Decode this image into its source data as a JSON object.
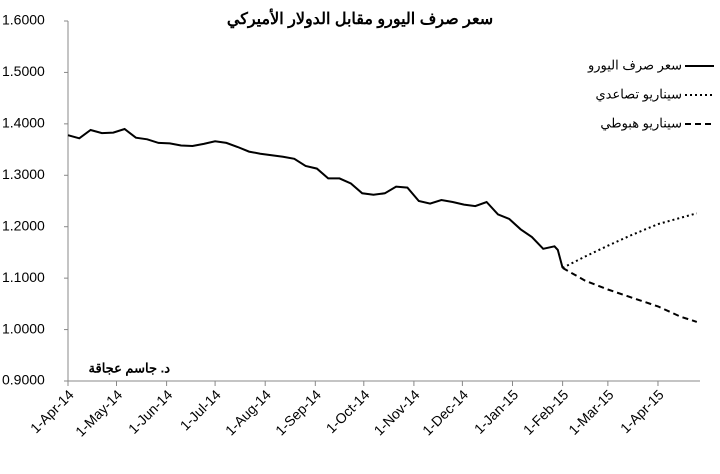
{
  "chart_data": {
    "type": "line",
    "title": "سعر صرف اليورو مقابل الدولار الأميركي",
    "annotation": "د. جاسم عجاقة",
    "xlim": [
      "2014-04-01",
      "2015-04-27"
    ],
    "xticks": [
      {
        "value": "2014-04-01",
        "label": "1-Apr-14"
      },
      {
        "value": "2014-05-01",
        "label": "1-May-14"
      },
      {
        "value": "2014-06-01",
        "label": "1-Jun-14"
      },
      {
        "value": "2014-07-01",
        "label": "1-Jul-14"
      },
      {
        "value": "2014-08-01",
        "label": "1-Aug-14"
      },
      {
        "value": "2014-09-01",
        "label": "1-Sep-14"
      },
      {
        "value": "2014-10-01",
        "label": "1-Oct-14"
      },
      {
        "value": "2014-11-01",
        "label": "1-Nov-14"
      },
      {
        "value": "2014-12-01",
        "label": "1-Dec-14"
      },
      {
        "value": "2015-01-01",
        "label": "1-Jan-15"
      },
      {
        "value": "2015-02-01",
        "label": "1-Feb-15"
      },
      {
        "value": "2015-03-01",
        "label": "1-Mar-15"
      },
      {
        "value": "2015-04-01",
        "label": "1-Apr-15"
      }
    ],
    "ylim": [
      0.9,
      1.6
    ],
    "yticks": [
      {
        "value": 0.9,
        "label": "0.9000"
      },
      {
        "value": 1.0,
        "label": "1.0000"
      },
      {
        "value": 1.1,
        "label": "1.1000"
      },
      {
        "value": 1.2,
        "label": "1.2000"
      },
      {
        "value": 1.3,
        "label": "1.3000"
      },
      {
        "value": 1.4,
        "label": "1.4000"
      },
      {
        "value": 1.5,
        "label": "1.5000"
      },
      {
        "value": 1.6,
        "label": "1.6000"
      }
    ],
    "grid": false,
    "legend": "top-right",
    "series": [
      {
        "name": "سعر صرف اليورو",
        "color": "#000000",
        "style": "solid",
        "x": [
          "2014-04-01",
          "2014-04-08",
          "2014-04-15",
          "2014-04-22",
          "2014-04-29",
          "2014-05-06",
          "2014-05-13",
          "2014-05-20",
          "2014-05-27",
          "2014-06-03",
          "2014-06-10",
          "2014-06-17",
          "2014-06-24",
          "2014-07-01",
          "2014-07-08",
          "2014-07-15",
          "2014-07-22",
          "2014-07-29",
          "2014-08-05",
          "2014-08-12",
          "2014-08-19",
          "2014-08-26",
          "2014-09-02",
          "2014-09-09",
          "2014-09-16",
          "2014-09-23",
          "2014-09-30",
          "2014-10-07",
          "2014-10-14",
          "2014-10-21",
          "2014-10-28",
          "2014-11-04",
          "2014-11-11",
          "2014-11-18",
          "2014-11-25",
          "2014-12-02",
          "2014-12-09",
          "2014-12-16",
          "2014-12-23",
          "2014-12-30",
          "2015-01-06",
          "2015-01-13",
          "2015-01-20",
          "2015-01-27",
          "2015-01-29",
          "2015-02-01"
        ],
        "values": [
          1.378,
          1.372,
          1.388,
          1.382,
          1.383,
          1.39,
          1.373,
          1.37,
          1.363,
          1.362,
          1.358,
          1.357,
          1.361,
          1.366,
          1.363,
          1.355,
          1.346,
          1.342,
          1.339,
          1.336,
          1.332,
          1.318,
          1.313,
          1.294,
          1.294,
          1.284,
          1.265,
          1.262,
          1.265,
          1.278,
          1.276,
          1.25,
          1.245,
          1.252,
          1.248,
          1.243,
          1.24,
          1.248,
          1.224,
          1.215,
          1.195,
          1.18,
          1.157,
          1.162,
          1.155,
          1.12
        ]
      },
      {
        "name": "سيناريو تصاعدي",
        "color": "#000000",
        "style": "dotted",
        "x": [
          "2015-02-01",
          "2015-02-15",
          "2015-03-01",
          "2015-03-15",
          "2015-04-01",
          "2015-04-25"
        ],
        "values": [
          1.12,
          1.142,
          1.163,
          1.183,
          1.205,
          1.226
        ]
      },
      {
        "name": "سيناريو هبوطي",
        "color": "#000000",
        "style": "dashed",
        "x": [
          "2015-02-01",
          "2015-02-15",
          "2015-03-01",
          "2015-03-15",
          "2015-04-01",
          "2015-04-15",
          "2015-04-25"
        ],
        "values": [
          1.12,
          1.095,
          1.078,
          1.063,
          1.045,
          1.025,
          1.015
        ]
      }
    ]
  }
}
